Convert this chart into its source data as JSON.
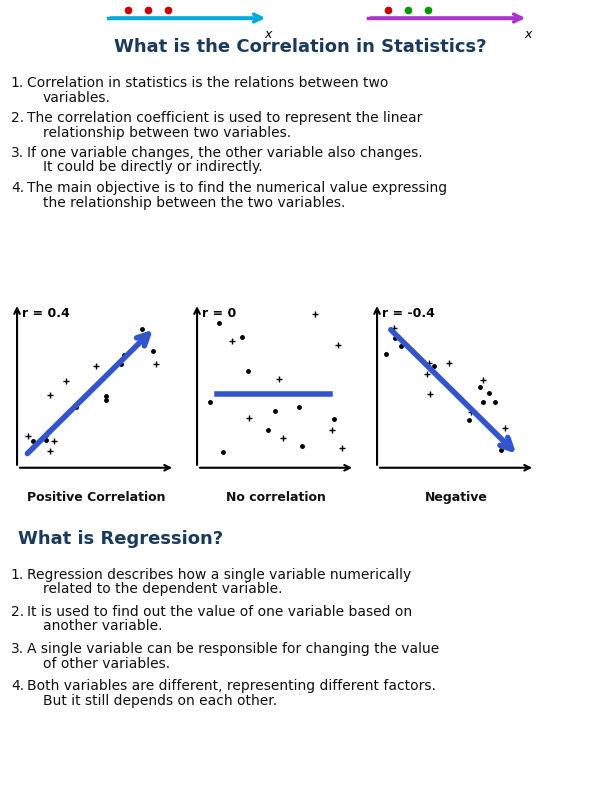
{
  "bg_color": "#ffffff",
  "section_title_color": "#1a3a5c",
  "text_color": "#111111",
  "correlation_title": "What is the Correlation in Statistics?",
  "correlation_points": [
    [
      "Correlation in statistics is the relations between two",
      "variables."
    ],
    [
      "The correlation coefficient is used to represent the linear",
      "relationship between two variables."
    ],
    [
      "If one variable changes, the other variable also changes.",
      "It could be directly or indirectly."
    ],
    [
      "The main objective is to find the numerical value expressing",
      "the relationship between the two variables."
    ]
  ],
  "regression_title": "What is Regression?",
  "regression_points": [
    [
      "Regression describes how a single variable numerically",
      "related to the dependent variable."
    ],
    [
      "It is used to find out the value of one variable based on",
      "another variable."
    ],
    [
      "A single variable can be responsible for changing the value",
      "of other variables."
    ],
    [
      "Both variables are different, representing different factors.",
      "But it still depends on each other."
    ]
  ],
  "scatter_labels": [
    "Positive Correlation",
    "No correlation",
    "Negative"
  ],
  "scatter_r": [
    "r = 0.4",
    "r = 0",
    "r = -0.4"
  ],
  "arrow_color": "#3355cc",
  "scatter_color": "#000000",
  "top_arrow1_color": "#00aadd",
  "top_arrow2_color": "#aa33cc",
  "top_dot1_colors": [
    "#cc0000",
    "#cc0000",
    "#cc0000"
  ],
  "top_dot2_colors": [
    "#cc0000",
    "#009900",
    "#009900"
  ]
}
